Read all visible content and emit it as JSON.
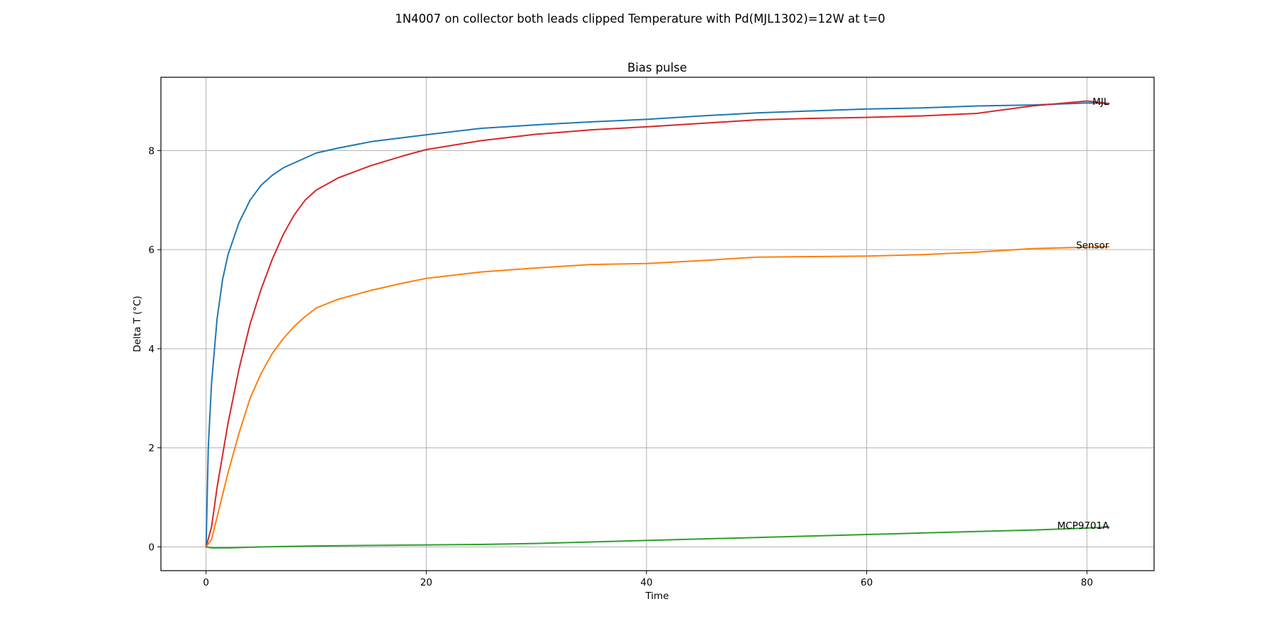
{
  "chart_data": {
    "type": "line",
    "suptitle": "1N4007 on collector both leads clipped Temperature with Pd(MJL1302)=12W at t=0",
    "title": "Bias pulse",
    "xlabel": "Time",
    "ylabel": "Delta T (°C)",
    "xlim": [
      -4.1,
      86.1
    ],
    "ylim": [
      -0.48,
      9.48
    ],
    "xticks": [
      0,
      20,
      40,
      60,
      80
    ],
    "yticks": [
      0,
      2,
      4,
      6,
      8
    ],
    "xtick_labels": [
      "0",
      "20",
      "40",
      "60",
      "80"
    ],
    "ytick_labels": [
      "0",
      "2",
      "4",
      "6",
      "8"
    ],
    "grid": true,
    "series": [
      {
        "color": "#1f77b4",
        "x": [
          0,
          0.2,
          0.5,
          1,
          1.5,
          2,
          3,
          4,
          5,
          6,
          7,
          8,
          10,
          12,
          15,
          20,
          25,
          30,
          35,
          40,
          45,
          50,
          55,
          60,
          65,
          70,
          75,
          80,
          82
        ],
        "y": [
          0,
          2.0,
          3.3,
          4.6,
          5.4,
          5.9,
          6.55,
          7.0,
          7.3,
          7.5,
          7.65,
          7.75,
          7.95,
          8.05,
          8.18,
          8.32,
          8.45,
          8.52,
          8.58,
          8.63,
          8.7,
          8.76,
          8.8,
          8.84,
          8.86,
          8.9,
          8.92,
          8.96,
          8.95
        ]
      },
      {
        "color": "#d62728",
        "x": [
          0,
          0.5,
          1,
          2,
          3,
          4,
          5,
          6,
          7,
          8,
          9,
          10,
          12,
          15,
          18,
          20,
          25,
          30,
          35,
          40,
          45,
          50,
          55,
          60,
          65,
          70,
          75,
          80,
          82
        ],
        "y": [
          0,
          0.4,
          1.2,
          2.5,
          3.6,
          4.5,
          5.2,
          5.8,
          6.3,
          6.7,
          7.0,
          7.2,
          7.45,
          7.7,
          7.9,
          8.02,
          8.2,
          8.33,
          8.42,
          8.48,
          8.55,
          8.62,
          8.65,
          8.67,
          8.7,
          8.75,
          8.9,
          9.0,
          8.95
        ]
      },
      {
        "name": "Sensor",
        "color": "#ff7f0e",
        "x": [
          0,
          0.5,
          1,
          2,
          3,
          4,
          5,
          6,
          7,
          8,
          9,
          10,
          12,
          15,
          18,
          20,
          25,
          30,
          35,
          40,
          45,
          50,
          55,
          60,
          65,
          70,
          75,
          80,
          82
        ],
        "y": [
          0,
          0.15,
          0.6,
          1.5,
          2.3,
          3.0,
          3.5,
          3.9,
          4.2,
          4.45,
          4.65,
          4.82,
          5.0,
          5.18,
          5.33,
          5.42,
          5.55,
          5.63,
          5.7,
          5.72,
          5.78,
          5.85,
          5.86,
          5.87,
          5.9,
          5.95,
          6.02,
          6.05,
          6.06
        ]
      },
      {
        "name": "MCP9701A",
        "color": "#2ca02c",
        "x": [
          0,
          0.5,
          2,
          5,
          10,
          15,
          20,
          25,
          30,
          35,
          40,
          45,
          50,
          55,
          60,
          65,
          70,
          75,
          80,
          82
        ],
        "y": [
          0,
          -0.02,
          -0.02,
          0.0,
          0.02,
          0.03,
          0.04,
          0.05,
          0.07,
          0.1,
          0.13,
          0.16,
          0.19,
          0.22,
          0.25,
          0.28,
          0.31,
          0.34,
          0.38,
          0.4
        ]
      }
    ],
    "annotations": [
      {
        "text": "MJL",
        "x": 82,
        "y": 8.98
      },
      {
        "text": "Sensor",
        "x": 82,
        "y": 6.08
      },
      {
        "text": "MCP9701A",
        "x": 82,
        "y": 0.42
      }
    ]
  }
}
